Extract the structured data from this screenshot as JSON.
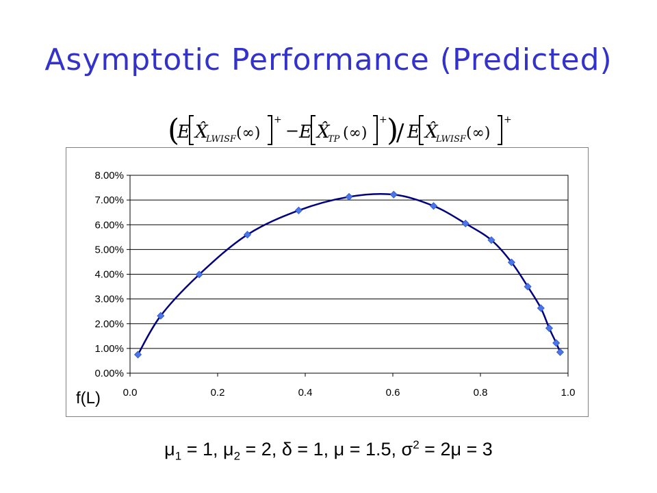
{
  "slide": {
    "title": "Asymptotic Performance (Predicted)",
    "formula_parts": {
      "lparen": "(",
      "E": "E",
      "xhat": "X̂",
      "sub_lwisf": "LWISF",
      "sub_tp": "TP",
      "inf": "(∞)",
      "plus": "+",
      "minus": "−",
      "rparen": ")",
      "slash": "/"
    },
    "params": {
      "mu": "μ",
      "delta": "δ",
      "sigma": "σ",
      "sub1": "1",
      "sub2": "2",
      "sup2": "2",
      "t1": " = 1, ",
      "t2": " = 2, ",
      "t3": " = 1, ",
      "t4": " = 1.5, ",
      "t5": " = 2",
      "t6": " = 3"
    }
  },
  "chart_data": {
    "type": "line",
    "title": "",
    "xlabel": "f(L)",
    "ylabel": "",
    "xlim": [
      0.0,
      1.0
    ],
    "ylim": [
      0.0,
      0.08
    ],
    "x_ticks": [
      "0.0",
      "0.2",
      "0.4",
      "0.6",
      "0.8",
      "1.0"
    ],
    "y_ticks": [
      "0.00%",
      "1.00%",
      "2.00%",
      "3.00%",
      "4.00%",
      "5.00%",
      "6.00%",
      "7.00%",
      "8.00%"
    ],
    "grid": "horizontal",
    "legend": "none",
    "series": [
      {
        "marker": "diamond",
        "color": "#4a76e8",
        "line_color": "#000080",
        "smooth": true,
        "x": [
          0.018,
          0.07,
          0.158,
          0.268,
          0.385,
          0.5,
          0.602,
          0.693,
          0.766,
          0.825,
          0.871,
          0.908,
          0.938,
          0.957,
          0.973,
          0.982
        ],
        "y": [
          0.0075,
          0.0232,
          0.0399,
          0.056,
          0.0658,
          0.0713,
          0.0722,
          0.0676,
          0.0605,
          0.0538,
          0.0448,
          0.035,
          0.0263,
          0.0182,
          0.0122,
          0.0085
        ]
      }
    ]
  }
}
